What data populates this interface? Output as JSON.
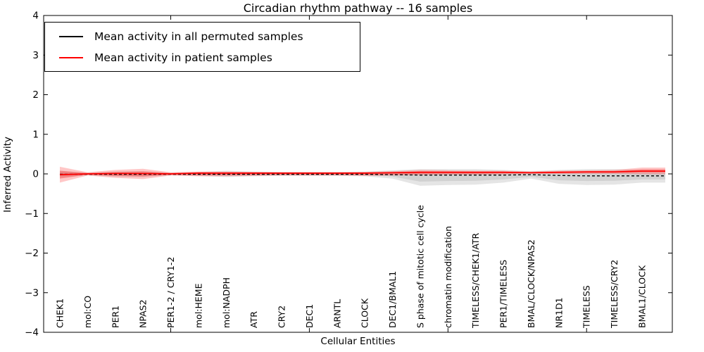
{
  "figure": {
    "title": "Circadian rhythm pathway -- 16 samples",
    "xlabel": "Cellular Entities",
    "ylabel": "Inferred Activity"
  },
  "legend": {
    "items": [
      {
        "label": "Mean activity in all permuted samples",
        "color": "#000000"
      },
      {
        "label": "Mean activity in patient samples",
        "color": "#ff0000"
      }
    ]
  },
  "chart_data": {
    "type": "line",
    "title": "Circadian rhythm pathway -- 16 samples",
    "xlabel": "Cellular Entities",
    "ylabel": "Inferred Activity",
    "ylim": [
      -4,
      4
    ],
    "yticks": {
      "values": [
        -4,
        -3,
        -2,
        -1,
        0,
        1,
        2,
        3,
        4
      ],
      "labels": [
        "−4",
        "−3",
        "−2",
        "−1",
        "0",
        "1",
        "2",
        "3",
        "4"
      ]
    },
    "x_major_tick_indices": [
      4,
      9,
      14,
      19
    ],
    "grid": false,
    "legend_position": "upper left",
    "categories": [
      "CHEK1",
      "mol:CO",
      "PER1",
      "NPAS2",
      "PER1-2 / CRY1-2",
      "mol:HEME",
      "mol:NADPH",
      "ATR",
      "CRY2",
      "DEC1",
      "ARNTL",
      "CLOCK",
      "DEC1/BMAL1",
      "S phase of mitotic cell cycle",
      "chromatin modification",
      "TIMELESS/CHEK1/ATR",
      "PER1/TIMELESS",
      "BMAL/CLOCK/NPAS2",
      "NR1D1",
      "TIMELESS",
      "TIMELESS/CRY2",
      "BMAL1/CLOCK"
    ],
    "series": [
      {
        "name": "Mean activity in all permuted samples",
        "color": "#000000",
        "style": "dashed",
        "values": [
          -0.01,
          -0.01,
          -0.01,
          -0.01,
          -0.01,
          -0.01,
          -0.01,
          -0.01,
          -0.01,
          -0.01,
          -0.01,
          -0.01,
          -0.02,
          -0.03,
          -0.03,
          -0.03,
          -0.03,
          -0.02,
          -0.04,
          -0.05,
          -0.05,
          -0.05
        ]
      },
      {
        "name": "Mean activity in patient samples",
        "color": "#ff0000",
        "style": "solid",
        "values": [
          -0.02,
          0.0,
          0.01,
          0.01,
          0.0,
          0.02,
          0.02,
          0.02,
          0.02,
          0.02,
          0.02,
          0.02,
          0.03,
          0.04,
          0.04,
          0.04,
          0.04,
          0.03,
          0.04,
          0.05,
          0.05,
          0.07
        ]
      }
    ],
    "bands": [
      {
        "name": "permuted-samples-range",
        "color": "#b4b4b4",
        "opacity": 0.35,
        "upper": [
          0.08,
          0.03,
          0.06,
          0.07,
          0.03,
          0.05,
          0.08,
          0.06,
          0.05,
          0.05,
          0.05,
          0.06,
          0.09,
          0.12,
          0.12,
          0.12,
          0.1,
          0.07,
          0.1,
          0.12,
          0.12,
          0.1
        ],
        "lower": [
          -0.1,
          -0.03,
          -0.07,
          -0.08,
          -0.03,
          -0.05,
          -0.08,
          -0.06,
          -0.05,
          -0.05,
          -0.05,
          -0.06,
          -0.12,
          -0.3,
          -0.28,
          -0.27,
          -0.22,
          -0.12,
          -0.25,
          -0.28,
          -0.27,
          -0.22
        ]
      },
      {
        "name": "patient-samples-range",
        "color": "#ff1e1e",
        "opacity": 0.25,
        "upper": [
          0.18,
          0.04,
          0.1,
          0.13,
          0.04,
          0.06,
          0.06,
          0.05,
          0.04,
          0.04,
          0.04,
          0.05,
          0.07,
          0.1,
          0.09,
          0.08,
          0.08,
          0.06,
          0.08,
          0.09,
          0.1,
          0.16
        ],
        "lower": [
          -0.22,
          -0.04,
          -0.1,
          -0.13,
          -0.04,
          -0.06,
          -0.06,
          -0.05,
          -0.04,
          -0.04,
          -0.04,
          -0.05,
          -0.04,
          -0.03,
          -0.02,
          -0.02,
          -0.01,
          0.0,
          0.0,
          0.0,
          0.0,
          -0.01
        ]
      }
    ]
  },
  "colors": {
    "background": "#ffffff",
    "axis": "#000000",
    "permuted_line": "#000000",
    "patient_line": "#ff0000"
  }
}
